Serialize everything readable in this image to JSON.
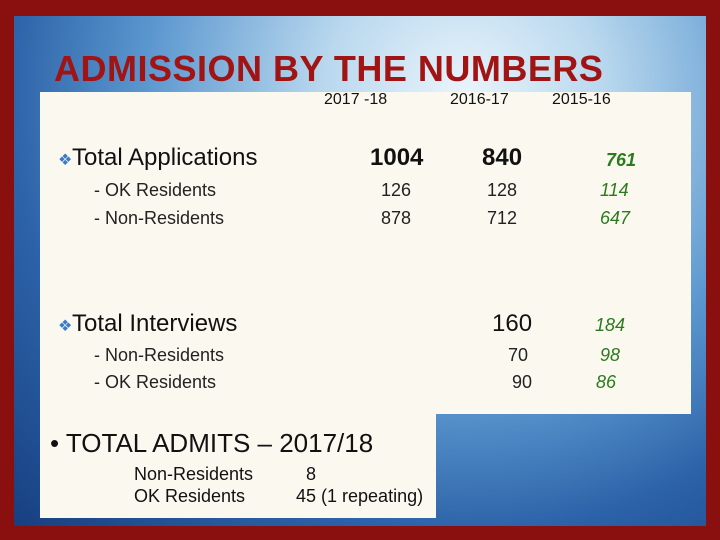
{
  "title": "ADMISSION BY THE NUMBERS",
  "columns": [
    "2017 -18",
    "2016-17",
    "2015-16"
  ],
  "applications": {
    "label": "Total Applications",
    "totals": [
      "1004",
      "840",
      "761"
    ],
    "rows": [
      {
        "label": "- OK Residents",
        "values": [
          "126",
          "128",
          "114"
        ]
      },
      {
        "label": "- Non-Residents",
        "values": [
          "878",
          "712",
          "647"
        ]
      }
    ]
  },
  "interviews": {
    "label": "Total Interviews",
    "totals": [
      "160",
      "184"
    ],
    "rows": [
      {
        "label": "- Non-Residents",
        "values": [
          "70",
          "98"
        ]
      },
      {
        "label": "- OK Residents",
        "values": [
          "90",
          "86"
        ]
      }
    ]
  },
  "admits": {
    "title": "• TOTAL ADMITS – 2017/18",
    "rows": [
      {
        "label": "Non-Residents",
        "value": "8"
      },
      {
        "label": "OK Residents",
        "value": "45 (1 repeating)"
      }
    ]
  },
  "colors": {
    "title": "#a01414",
    "highlight": "#2c7a1e",
    "frame": "#8a0f0f"
  }
}
